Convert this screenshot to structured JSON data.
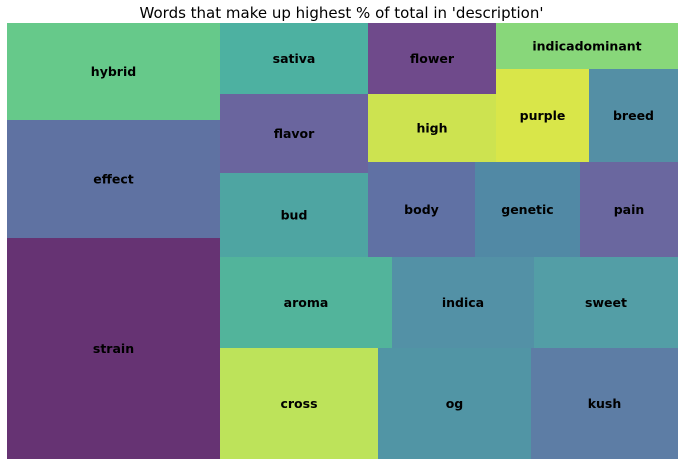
{
  "chart_data": {
    "type": "treemap",
    "title": "Words that make up highest % of total in 'description'",
    "cells": [
      {
        "label": "strain",
        "color": "#663373"
      },
      {
        "label": "effect",
        "color": "#5F72A2"
      },
      {
        "label": "hybrid",
        "color": "#66C98A"
      },
      {
        "label": "cross",
        "color": "#BDE35A"
      },
      {
        "label": "aroma",
        "color": "#52B49B"
      },
      {
        "label": "bud",
        "color": "#4EA5A2"
      },
      {
        "label": "flavor",
        "color": "#6A659E"
      },
      {
        "label": "sativa",
        "color": "#4DB1A1"
      },
      {
        "label": "og",
        "color": "#5195A5"
      },
      {
        "label": "indica",
        "color": "#5391A6"
      },
      {
        "label": "body",
        "color": "#6071A4"
      },
      {
        "label": "high",
        "color": "#CDE350"
      },
      {
        "label": "flower",
        "color": "#6F4A8B"
      },
      {
        "label": "kush",
        "color": "#5D7DA5"
      },
      {
        "label": "sweet",
        "color": "#539EA6"
      },
      {
        "label": "genetic",
        "color": "#5189A5"
      },
      {
        "label": "purple",
        "color": "#D9E649"
      },
      {
        "label": "pain",
        "color": "#6A679F"
      },
      {
        "label": "breed",
        "color": "#548FA5"
      },
      {
        "label": "indicadominant",
        "color": "#88D77A"
      }
    ]
  }
}
